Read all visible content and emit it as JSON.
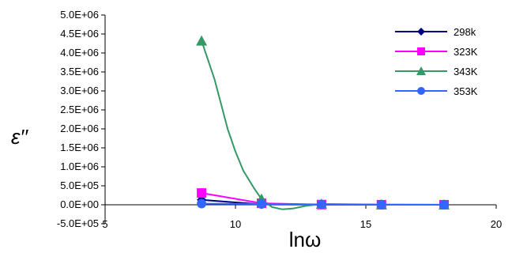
{
  "chart_data": {
    "type": "line",
    "title": "",
    "xlabel": "lnω",
    "ylabel": "ε′′",
    "xlim": [
      5,
      20
    ],
    "ylim": [
      -500000,
      5000000
    ],
    "x_ticks": [
      5,
      10,
      15,
      20
    ],
    "x_tick_labels": [
      "5",
      "10",
      "15",
      "20"
    ],
    "y_ticks": [
      -500000,
      0,
      500000,
      1000000,
      1500000,
      2000000,
      2500000,
      3000000,
      3500000,
      4000000,
      4500000,
      5000000
    ],
    "y_tick_labels": [
      "-5.0E+05",
      "0.0E+00",
      "5.0E+05",
      "1.0E+06",
      "1.5E+06",
      "2.0E+06",
      "2.5E+06",
      "3.0E+06",
      "3.5E+06",
      "4.0E+06",
      "4.5E+06",
      "5.0E+06"
    ],
    "grid": false,
    "legend_position": "top-right",
    "series": [
      {
        "name": "298k",
        "color": "#000080",
        "marker": "diamond",
        "x": [
          8.7,
          11.0,
          13.3,
          15.6,
          18.0
        ],
        "y": [
          130000,
          10000,
          3000,
          1000,
          500
        ]
      },
      {
        "name": "323K",
        "color": "#ff00ff",
        "marker": "square",
        "x": [
          8.7,
          11.0,
          13.3,
          15.6,
          18.0
        ],
        "y": [
          310000,
          40000,
          5000,
          2000,
          1000
        ]
      },
      {
        "name": "343K",
        "color": "#339966",
        "marker": "triangle",
        "x": [
          8.7,
          11.0,
          13.3,
          15.6,
          18.0
        ],
        "y": [
          4320000,
          150000,
          20000,
          5000,
          2000
        ],
        "curve_x": [
          8.7,
          9.2,
          9.7,
          10.0,
          10.3,
          10.7,
          11.0,
          11.4,
          11.8,
          12.2,
          12.7,
          13.3,
          15.6,
          18.0
        ],
        "curve_y": [
          4320000,
          3300000,
          2000000,
          1400000,
          900000,
          450000,
          150000,
          -60000,
          -120000,
          -100000,
          -30000,
          20000,
          5000,
          2000
        ]
      },
      {
        "name": "353K",
        "color": "#3366ff",
        "marker": "circle",
        "x": [
          8.7,
          11.0,
          13.3,
          15.6,
          18.0
        ],
        "y": [
          30000,
          20000,
          10000,
          3000,
          1000
        ]
      }
    ]
  }
}
